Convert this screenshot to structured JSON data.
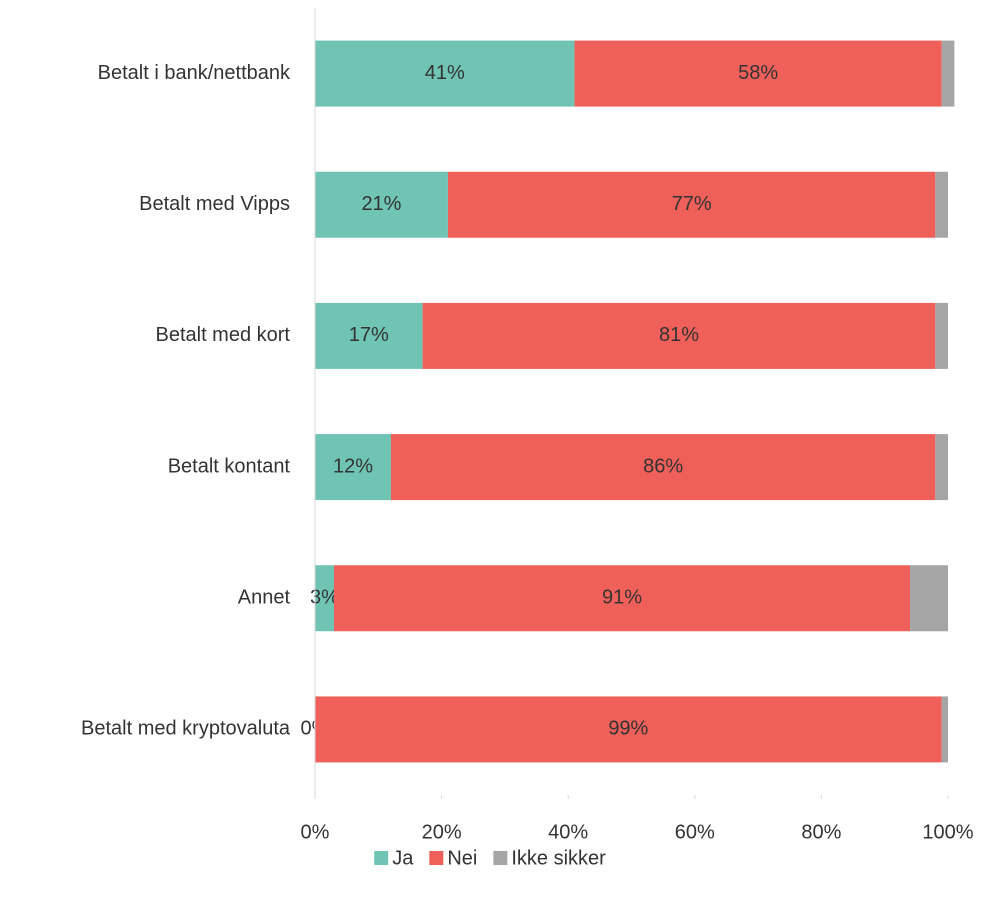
{
  "chart_data": {
    "type": "stacked-bar-horizontal",
    "categories": [
      "Betalt i bank/nettbank",
      "Betalt med Vipps",
      "Betalt med kort",
      "Betalt kontant",
      "Annet",
      "Betalt med kryptovaluta"
    ],
    "series": [
      {
        "name": "Ja",
        "color": "#70c4b4",
        "values": [
          41,
          21,
          17,
          12,
          3,
          0
        ],
        "value_labels": [
          "41%",
          "21%",
          "17%",
          "12%",
          "3%",
          "0%"
        ]
      },
      {
        "name": "Nei",
        "color": "#f0605a",
        "values": [
          58,
          77,
          81,
          86,
          91,
          99
        ],
        "value_labels": [
          "58%",
          "77%",
          "81%",
          "86%",
          "91%",
          "99%"
        ]
      },
      {
        "name": "Ikke sikker",
        "color": "#a5a5a5",
        "values": [
          2,
          2,
          2,
          2,
          6,
          1
        ]
      }
    ],
    "xlim": [
      0,
      100
    ],
    "xticks": [
      {
        "value": 0,
        "label": "0%"
      },
      {
        "value": 20,
        "label": "20%"
      },
      {
        "value": 40,
        "label": "40%"
      },
      {
        "value": 60,
        "label": "60%"
      },
      {
        "value": 80,
        "label": "80%"
      },
      {
        "value": 100,
        "label": "100%"
      }
    ],
    "legend": "bottom"
  }
}
